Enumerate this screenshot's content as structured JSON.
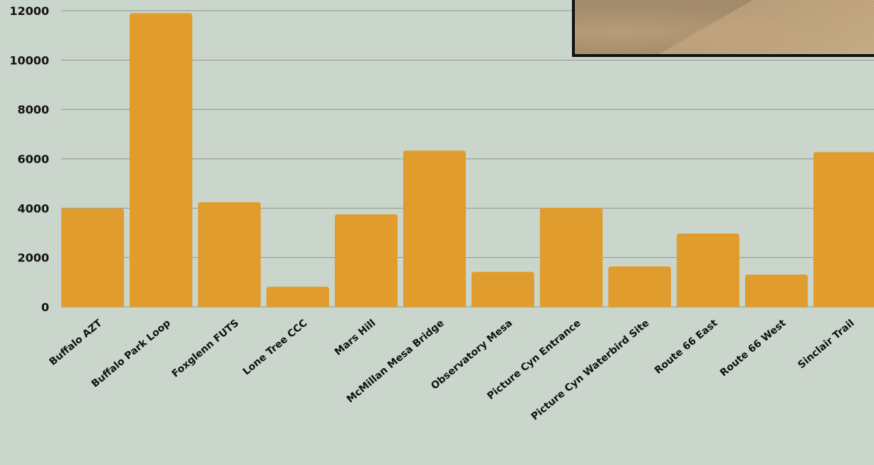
{
  "chart_data": {
    "type": "bar",
    "title": "",
    "xlabel": "",
    "ylabel": "",
    "categories": [
      "Buffalo AZT",
      "Buffalo Park Loop",
      "Foxglenn FUTS",
      "Lone Tree CCC",
      "Mars Hill",
      "McMillan Mesa Bridge",
      "Observatory Mesa",
      "Picture Cyn Entrance",
      "Picture Cyn Waterbird Site",
      "Route 66 East",
      "Route 66 West",
      "Sinclair Trail"
    ],
    "values": [
      3990,
      11900,
      4240,
      820,
      3750,
      6330,
      1420,
      4010,
      1640,
      2970,
      1310,
      6270
    ],
    "ylim": [
      0,
      12000
    ],
    "yticks": [
      0,
      2000,
      4000,
      6000,
      8000,
      10000,
      12000
    ],
    "grid": true,
    "legend": "none",
    "colors": {
      "bar": "#e09d2d",
      "background": "#cad5cb",
      "gridline": "#8f9890",
      "text": "#111111"
    }
  },
  "inset_photo": {
    "description_icon": "gravel-photo"
  }
}
